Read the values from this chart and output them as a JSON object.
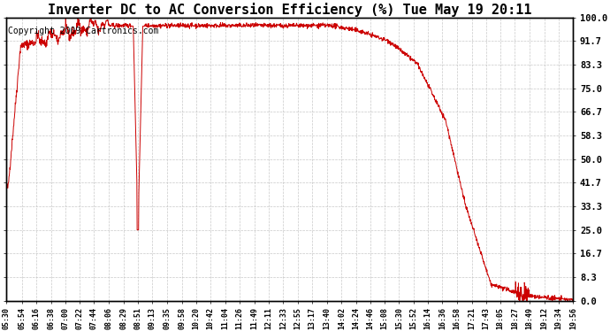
{
  "title": "Inverter DC to AC Conversion Efficiency (%) Tue May 19 20:11",
  "copyright": "Copyright 2009 Cartronics.com",
  "ylabel_right": [
    "100.0",
    "91.7",
    "83.3",
    "75.0",
    "66.7",
    "58.3",
    "50.0",
    "41.7",
    "33.3",
    "25.0",
    "16.7",
    "8.3",
    "0.0"
  ],
  "yticks": [
    100.0,
    91.7,
    83.3,
    75.0,
    66.7,
    58.3,
    50.0,
    41.7,
    33.3,
    25.0,
    16.7,
    8.3,
    0.0
  ],
  "ylim": [
    0.0,
    100.0
  ],
  "xtick_labels": [
    "05:30",
    "05:54",
    "06:16",
    "06:38",
    "07:00",
    "07:22",
    "07:44",
    "08:06",
    "08:29",
    "08:51",
    "09:13",
    "09:35",
    "09:58",
    "10:20",
    "10:42",
    "11:04",
    "11:26",
    "11:49",
    "12:11",
    "12:33",
    "12:55",
    "13:17",
    "13:40",
    "14:02",
    "14:24",
    "14:46",
    "15:08",
    "15:30",
    "15:52",
    "16:14",
    "16:36",
    "16:58",
    "17:21",
    "17:43",
    "18:05",
    "18:27",
    "18:49",
    "19:12",
    "19:34",
    "19:56"
  ],
  "background_color": "#ffffff",
  "plot_bg_color": "#ffffff",
  "grid_color": "#bbbbbb",
  "line_color": "#cc0000",
  "title_fontsize": 11,
  "copyright_fontsize": 7
}
